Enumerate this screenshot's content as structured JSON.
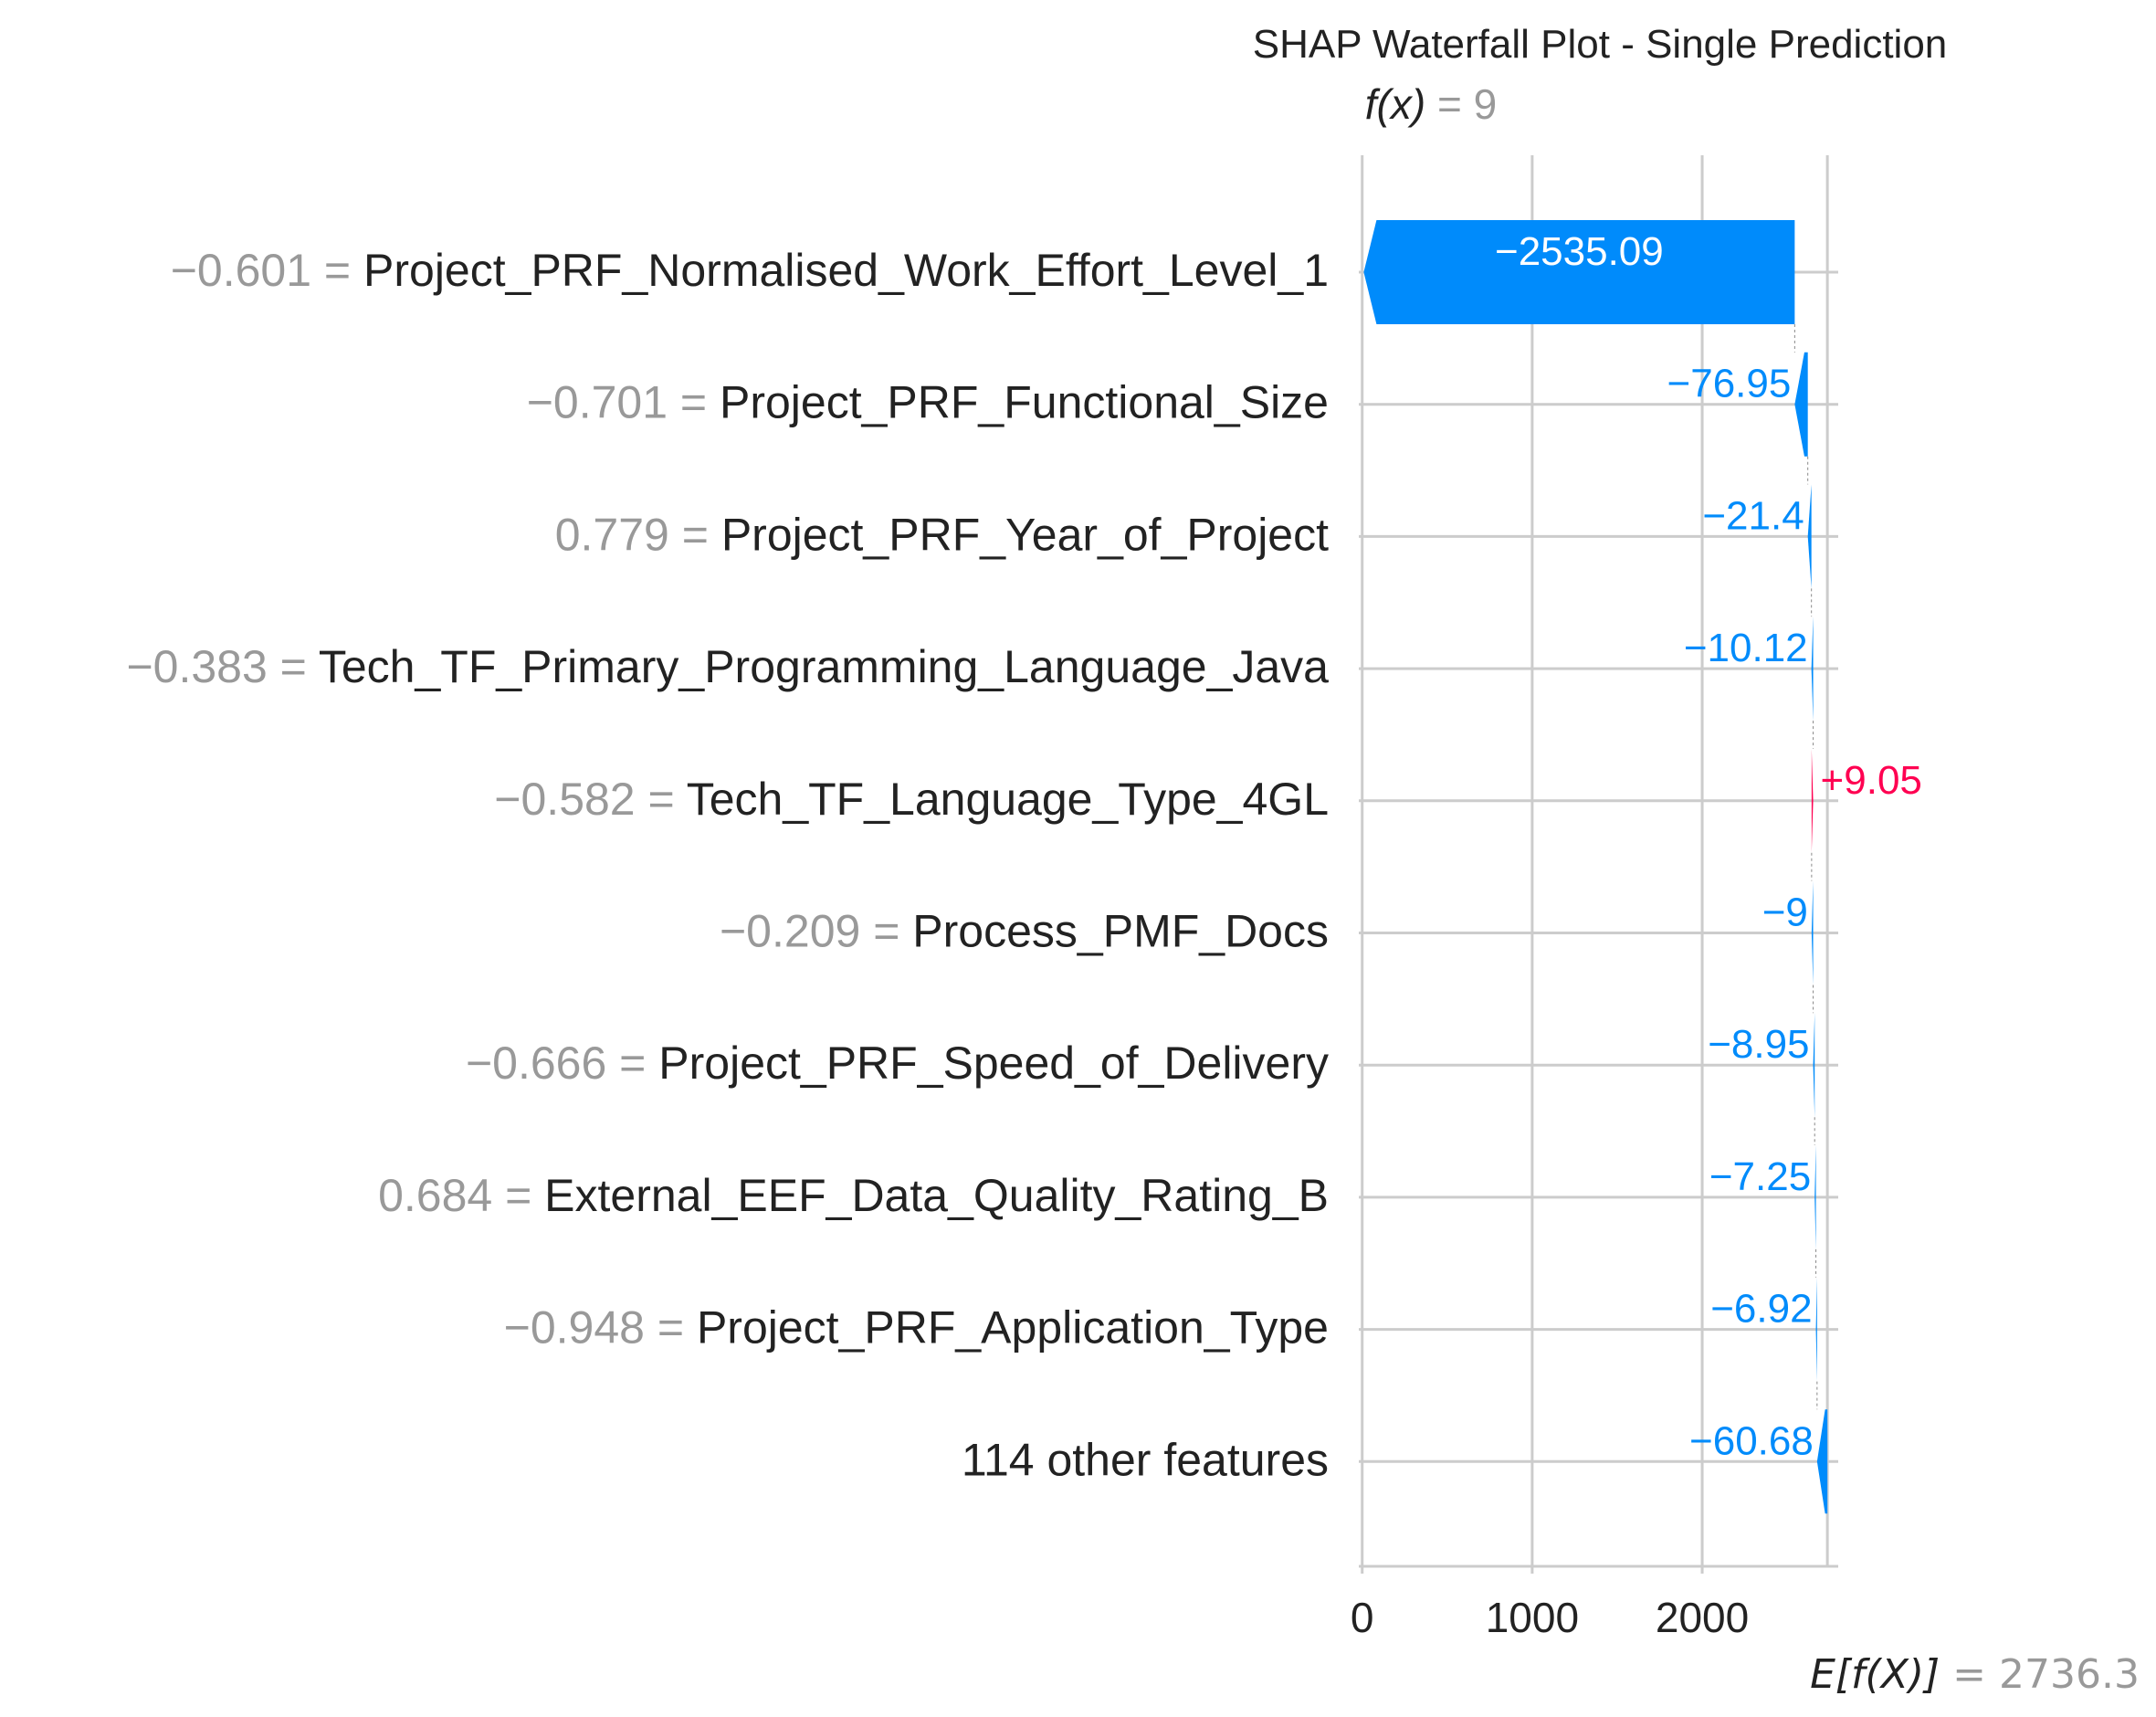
{
  "chart_data": {
    "type": "waterfall",
    "title": "SHAP Waterfall Plot - Single Prediction",
    "fx_label": "f(x)",
    "fx_value": "9",
    "fx": 9,
    "base_label": "E[f(X)]",
    "base_value": "2736.3",
    "base": 2736.3,
    "xlim": [
      -20,
      2800
    ],
    "xticks": [
      0,
      1000,
      2000
    ],
    "xtick_labels": [
      "0",
      "1000",
      "2000"
    ],
    "rows": [
      {
        "feature_value": "−0.601",
        "feature": "Project_PRF_Normalised_Work_Effort_Level_1",
        "shap": -2535.09,
        "label": "−2535.09"
      },
      {
        "feature_value": "−0.701",
        "feature": "Project_PRF_Functional_Size",
        "shap": -76.95,
        "label": "−76.95"
      },
      {
        "feature_value": "0.779",
        "feature": "Project_PRF_Year_of_Project",
        "shap": -21.4,
        "label": "−21.4"
      },
      {
        "feature_value": "−0.383",
        "feature": "Tech_TF_Primary_Programming_Language_Java",
        "shap": -10.12,
        "label": "−10.12"
      },
      {
        "feature_value": "−0.582",
        "feature": "Tech_TF_Language_Type_4GL",
        "shap": 9.05,
        "label": "+9.05"
      },
      {
        "feature_value": "−0.209",
        "feature": "Process_PMF_Docs",
        "shap": -9,
        "label": "−9"
      },
      {
        "feature_value": "−0.666",
        "feature": "Project_PRF_Speed_of_Delivery",
        "shap": -8.95,
        "label": "−8.95"
      },
      {
        "feature_value": "0.684",
        "feature": "External_EEF_Data_Quality_Rating_B",
        "shap": -7.25,
        "label": "−7.25"
      },
      {
        "feature_value": "−0.948",
        "feature": "Project_PRF_Application_Type",
        "shap": -6.92,
        "label": "−6.92"
      },
      {
        "feature_value": "",
        "feature": "114 other features",
        "shap": -60.68,
        "label": "−60.68"
      }
    ],
    "colors": {
      "negative": "#008bfb",
      "positive": "#ff0051",
      "grid": "#cccccc",
      "axis": "#cccccc",
      "text": "#222222",
      "muted": "#999999"
    }
  }
}
